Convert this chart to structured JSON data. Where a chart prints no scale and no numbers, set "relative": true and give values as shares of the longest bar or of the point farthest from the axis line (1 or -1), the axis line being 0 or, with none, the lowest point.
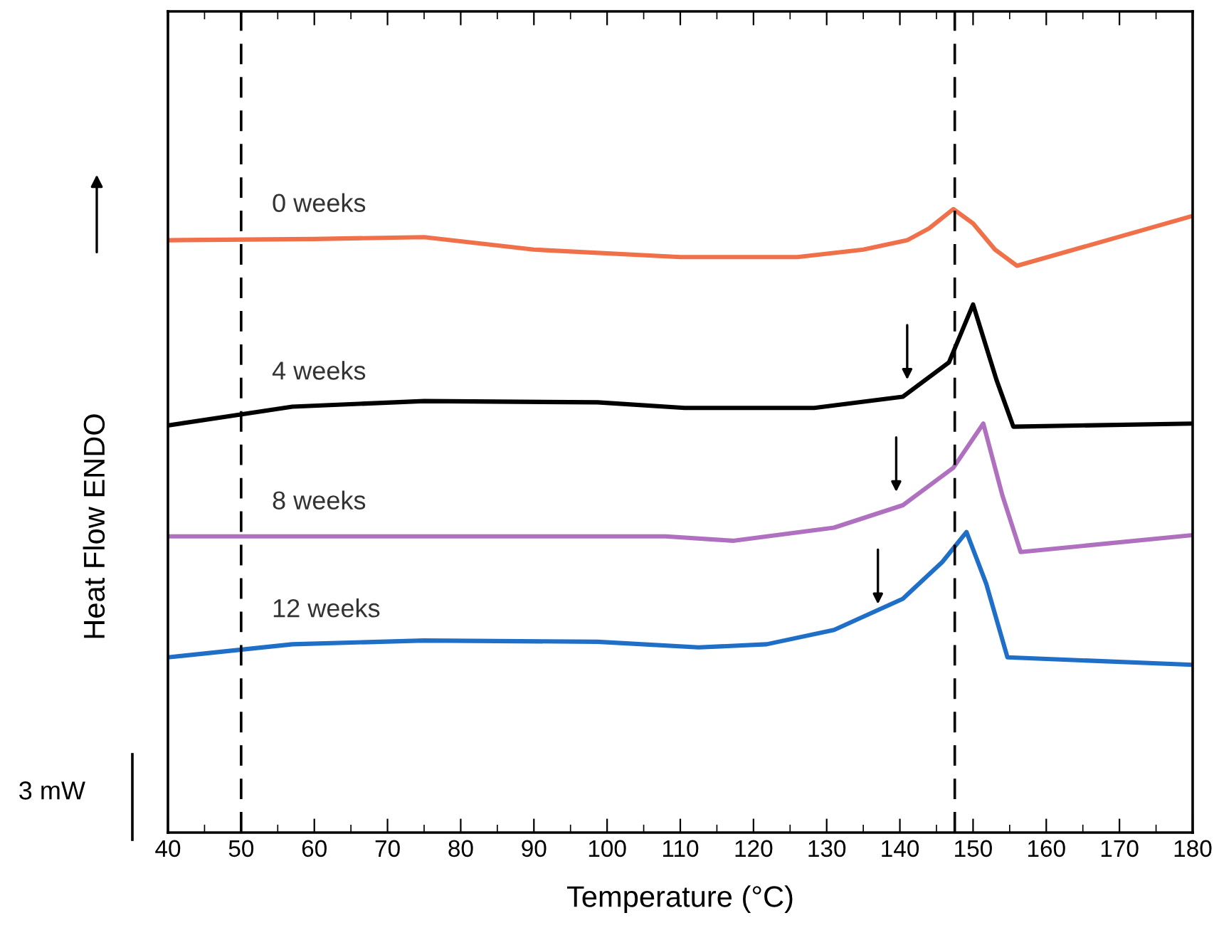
{
  "chart_data": {
    "type": "line",
    "relative": true,
    "xlabel": "Temperature (°C)",
    "ylabel": "Heat Flow ENDO",
    "xlim": [
      40,
      180
    ],
    "xticks": [
      40,
      50,
      60,
      70,
      80,
      90,
      100,
      110,
      120,
      130,
      140,
      150,
      160,
      170,
      180
    ],
    "grid": false,
    "legend": false,
    "line_style": "solid",
    "marker": "none",
    "ref_lines": [
      {
        "axis": "x",
        "value": 50,
        "color": "#000000",
        "line_style": "dashed"
      },
      {
        "axis": "x",
        "value": 147.5,
        "color": "#000000",
        "line_style": "dashed"
      }
    ],
    "annotations": [
      "3 mW"
    ],
    "series": [
      {
        "name": "0 weeks",
        "color": "#f0704a",
        "x": [
          40,
          60,
          75,
          90,
          110,
          126,
          135,
          141,
          144,
          147.3,
          150,
          153,
          156,
          165,
          180
        ],
        "values": [
          0.95,
          0.952,
          0.955,
          0.935,
          0.923,
          0.923,
          0.935,
          0.95,
          0.969,
          1,
          0.977,
          0.935,
          0.909,
          0.939,
          0.989
        ]
      },
      {
        "name": "4 weeks",
        "color": "#000000",
        "x": [
          40,
          57,
          75,
          98.7,
          110.6,
          128.3,
          140.4,
          146.7,
          150,
          153.2,
          155.5,
          180
        ],
        "values": [
          0.653,
          0.683,
          0.692,
          0.69,
          0.681,
          0.681,
          0.699,
          0.754,
          0.847,
          0.726,
          0.651,
          0.656
        ]
      },
      {
        "name": "8 weeks",
        "color": "#b070c0",
        "x": [
          40,
          108,
          117.2,
          131,
          140.4,
          147.3,
          151.4,
          154,
          156.5,
          180
        ],
        "values": [
          0.475,
          0.475,
          0.468,
          0.489,
          0.525,
          0.585,
          0.656,
          0.541,
          0.45,
          0.477
        ]
      },
      {
        "name": "12 weeks",
        "color": "#1f6fc8",
        "x": [
          40,
          57,
          75,
          98.7,
          112.5,
          121.8,
          131,
          140.4,
          145.8,
          149.1,
          151.8,
          154.7,
          180
        ],
        "values": [
          0.281,
          0.302,
          0.308,
          0.306,
          0.297,
          0.302,
          0.325,
          0.375,
          0.434,
          0.482,
          0.399,
          0.281,
          0.269
        ]
      }
    ]
  }
}
